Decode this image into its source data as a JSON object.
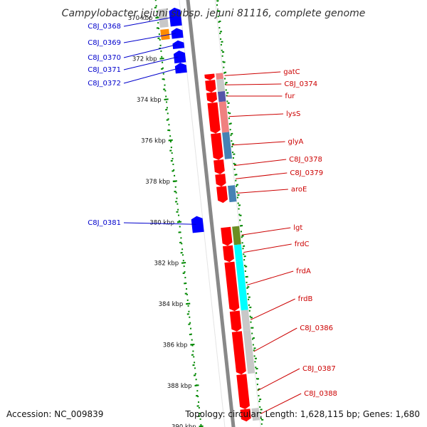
{
  "map": {
    "title": "Campylobacter jejuni subsp. jejuni 81116, complete genome",
    "accession": "Accession: NC_009839",
    "summary": "Topology: circular; Length: 1,628,115 bp; Genes: 1,680"
  },
  "colors": {
    "backbone": "#888888",
    "minus_strand": "#0000ff",
    "plus_strand": "#ff0000",
    "tick_mark": "#008800",
    "left_label": "#0000cc",
    "right_label": "#cc0000"
  },
  "scale": {
    "ticks_kbp": [
      370,
      372,
      374,
      376,
      378,
      380,
      382,
      384,
      386,
      388,
      390
    ],
    "tick_labels": [
      "370 kbp",
      "372 kbp",
      "374 kbp",
      "376 kbp",
      "378 kbp",
      "380 kbp",
      "382 kbp",
      "384 kbp",
      "386 kbp",
      "388 kbp",
      "390 kbp"
    ]
  },
  "minus_strand_genes": [
    {
      "label": "C8J_0368",
      "start_kbp": 369.6,
      "end_kbp": 370.5
    },
    {
      "label": "C8J_0369",
      "start_kbp": 370.6,
      "end_kbp": 371.1
    },
    {
      "label": "C8J_0370",
      "start_kbp": 371.2,
      "end_kbp": 371.6
    },
    {
      "label": "C8J_0371",
      "start_kbp": 371.7,
      "end_kbp": 372.3
    },
    {
      "label": "C8J_0372",
      "start_kbp": 372.3,
      "end_kbp": 372.8
    },
    {
      "label": "C8J_0381",
      "start_kbp": 379.8,
      "end_kbp": 380.6
    }
  ],
  "plus_strand_genes": [
    {
      "label": "gatC",
      "start_kbp": 373.0,
      "end_kbp": 373.3,
      "function_color": "#f08080"
    },
    {
      "label": "C8J_0374",
      "start_kbp": 373.3,
      "end_kbp": 373.9,
      "function_color": "#c8c8c8"
    },
    {
      "label": "fur",
      "start_kbp": 373.9,
      "end_kbp": 374.4,
      "function_color": "#5555aa"
    },
    {
      "label": "lysS",
      "start_kbp": 374.4,
      "end_kbp": 375.9,
      "function_color": "#f08080"
    },
    {
      "label": "glyA",
      "start_kbp": 375.9,
      "end_kbp": 377.2,
      "function_color": "#4682b4"
    },
    {
      "label": "C8J_0378",
      "start_kbp": 377.2,
      "end_kbp": 377.9,
      "function_color": ""
    },
    {
      "label": "C8J_0379",
      "start_kbp": 377.9,
      "end_kbp": 378.5,
      "function_color": ""
    },
    {
      "label": "aroE",
      "start_kbp": 378.5,
      "end_kbp": 379.3,
      "function_color": "#4682b4"
    },
    {
      "label": "lgt",
      "start_kbp": 380.5,
      "end_kbp": 381.4,
      "function_color": "#6b8e23"
    },
    {
      "label": "frdC",
      "start_kbp": 381.4,
      "end_kbp": 382.2,
      "function_color": "#00ffff"
    },
    {
      "label": "frdA",
      "start_kbp": 382.2,
      "end_kbp": 384.6,
      "function_color": "#00ffff"
    },
    {
      "label": "frdB",
      "start_kbp": 384.6,
      "end_kbp": 385.6,
      "function_color": "#c8c8c8"
    },
    {
      "label": "C8J_0386",
      "start_kbp": 385.6,
      "end_kbp": 387.7,
      "function_color": "#c8c8c8"
    },
    {
      "label": "C8J_0387",
      "start_kbp": 387.7,
      "end_kbp": 389.4,
      "function_color": ""
    },
    {
      "label": "C8J_0388",
      "start_kbp": 389.4,
      "end_kbp": 390.0,
      "function_color": "#c8c8c8"
    }
  ]
}
